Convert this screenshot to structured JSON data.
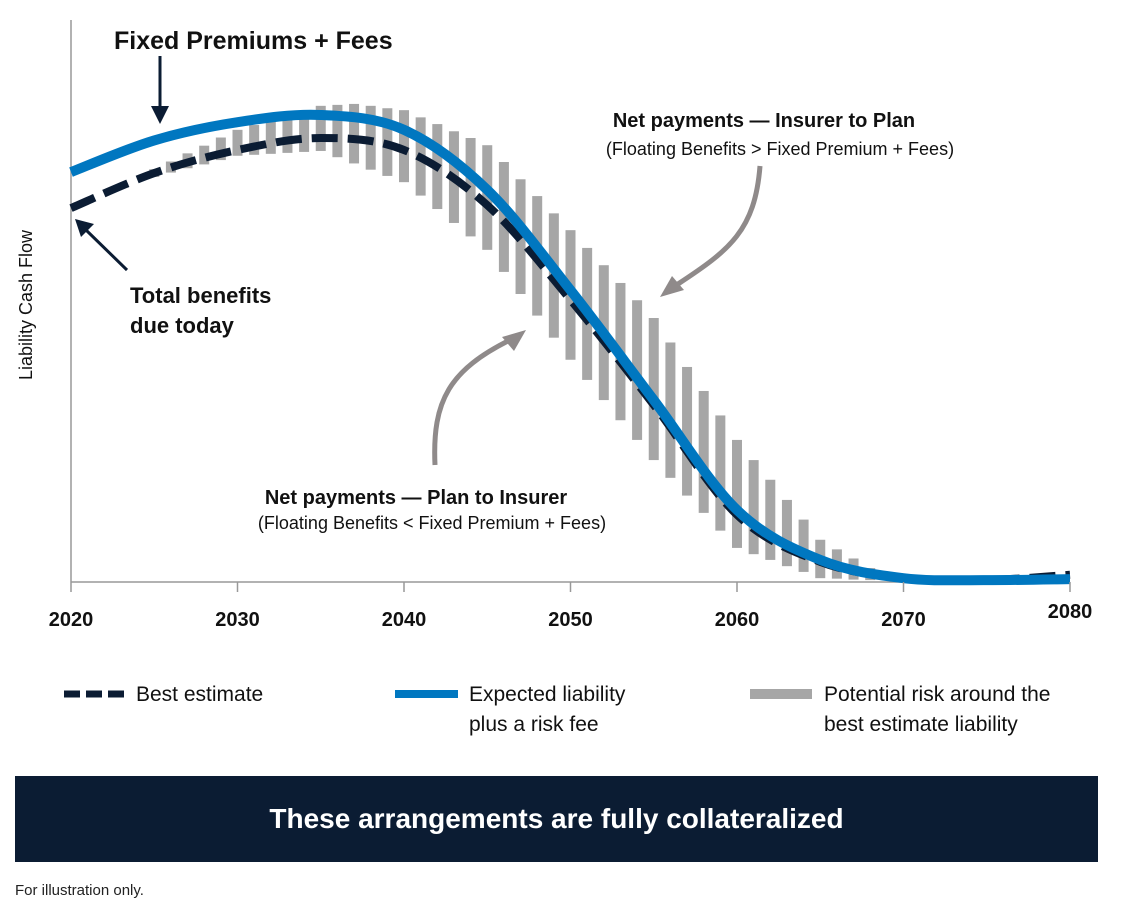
{
  "chart_data": {
    "type": "line",
    "title": "",
    "xlabel": "",
    "ylabel": "Liability Cash Flow",
    "xlim": [
      2020,
      2080
    ],
    "ylim": [
      0,
      100
    ],
    "x_ticks": [
      "2020",
      "2030",
      "2040",
      "2050",
      "2060",
      "2070",
      "2080"
    ],
    "grid": false,
    "legend_placement": "bottom",
    "series": [
      {
        "name": "Best estimate",
        "style": "dashed",
        "color": "#0b1c33",
        "x": [
          2020,
          2025,
          2030,
          2035,
          2040,
          2045,
          2050,
          2055,
          2060,
          2065,
          2070,
          2075,
          2080
        ],
        "values": [
          77.9,
          85.2,
          90.0,
          92.5,
          90.0,
          78.5,
          58.8,
          36.9,
          14.0,
          4.2,
          0.8,
          0.4,
          1.5
        ]
      },
      {
        "name": "Expected liability plus a risk fee",
        "style": "solid",
        "color": "#0077c0",
        "x": [
          2020,
          2025,
          2030,
          2035,
          2040,
          2045,
          2050,
          2055,
          2060,
          2065,
          2070,
          2075,
          2080
        ],
        "values": [
          85.4,
          92.0,
          95.8,
          97.3,
          94.2,
          81.7,
          60.8,
          37.9,
          15.0,
          4.6,
          0.8,
          0.4,
          0.6
        ]
      }
    ],
    "risk_band": {
      "name": "Potential risk around the best estimate liability",
      "color": "#a6a6a6",
      "x": [
        2025,
        2026,
        2027,
        2028,
        2029,
        2030,
        2031,
        2032,
        2033,
        2034,
        2035,
        2036,
        2037,
        2038,
        2039,
        2040,
        2041,
        2042,
        2043,
        2044,
        2045,
        2046,
        2047,
        2048,
        2049,
        2050,
        2051,
        2052,
        2053,
        2054,
        2055,
        2056,
        2057,
        2058,
        2059,
        2060,
        2061,
        2062,
        2063,
        2064,
        2065,
        2066,
        2067,
        2068
      ],
      "high": [
        86.0,
        87.6,
        89.3,
        90.9,
        92.6,
        94.2,
        95.2,
        96.2,
        97.2,
        98.2,
        99.2,
        99.4,
        99.6,
        99.2,
        98.7,
        98.3,
        96.8,
        95.4,
        93.9,
        92.5,
        91.0,
        87.5,
        83.9,
        80.4,
        76.8,
        73.3,
        69.6,
        66.0,
        62.3,
        58.7,
        55.0,
        49.9,
        44.8,
        39.8,
        34.7,
        29.6,
        25.4,
        21.3,
        17.1,
        13.0,
        8.8,
        6.8,
        4.9,
        2.9
      ],
      "low": [
        84.4,
        85.3,
        86.2,
        87.0,
        87.9,
        88.8,
        89.0,
        89.2,
        89.4,
        89.6,
        89.8,
        88.5,
        87.2,
        85.9,
        84.6,
        83.3,
        80.5,
        77.7,
        74.8,
        72.0,
        69.2,
        64.6,
        60.0,
        55.5,
        50.9,
        46.3,
        42.1,
        37.9,
        33.7,
        29.6,
        25.4,
        21.7,
        18.0,
        14.4,
        10.7,
        7.1,
        5.8,
        4.6,
        3.3,
        2.1,
        0.8,
        0.7,
        0.5,
        0.4
      ]
    },
    "annotations": {
      "fixed_premiums": "Fixed Premiums + Fees",
      "total_benefits_1": "Total benefits",
      "total_benefits_2": "due today",
      "insurer_to_plan_title": "Net payments — Insurer to Plan",
      "insurer_to_plan_sub": "(Floating Benefits > Fixed Premium + Fees)",
      "plan_to_insurer_title": "Net payments — Plan to Insurer",
      "plan_to_insurer_sub": "(Floating Benefits < Fixed Premium + Fees)"
    },
    "legend": {
      "best_estimate": "Best estimate",
      "expected_1": "Expected liability",
      "expected_2": "plus a risk fee",
      "risk_1": "Potential risk around the",
      "risk_2": "best estimate liability"
    }
  },
  "banner": "These arrangements are fully collateralized",
  "footnote": "For illustration only."
}
